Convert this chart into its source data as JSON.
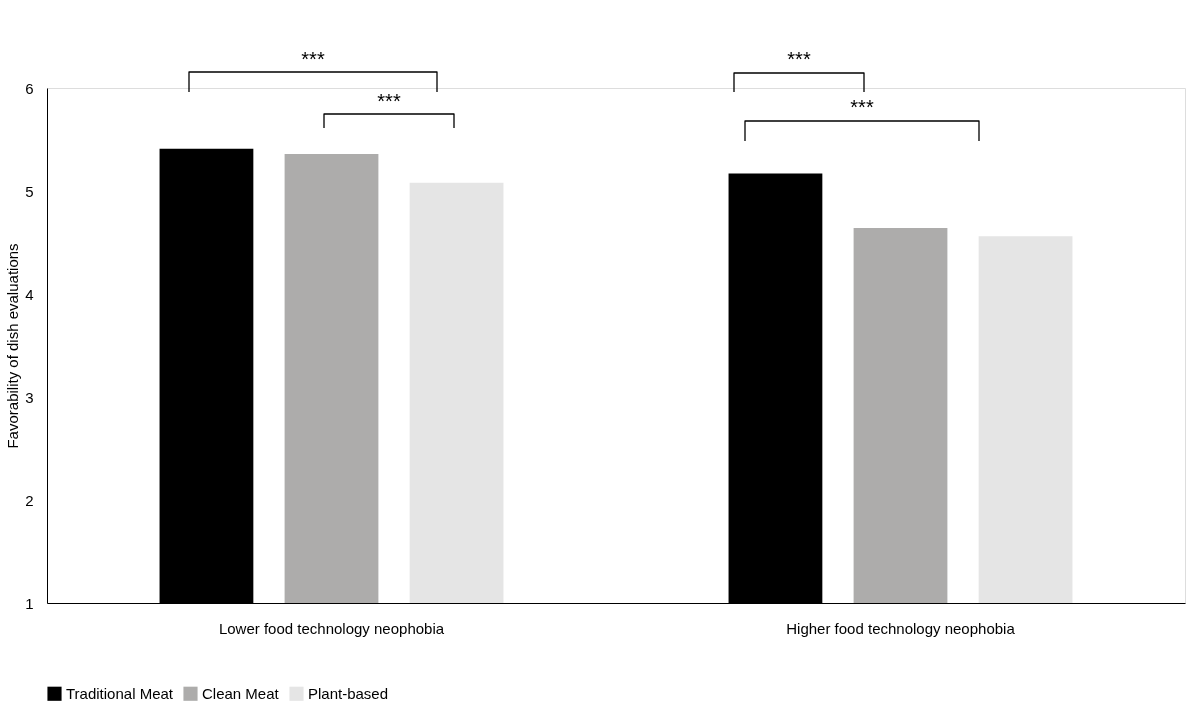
{
  "chart_data": {
    "type": "bar",
    "ylabel": "Favorability of dish evaluations",
    "categories": [
      "Lower food technology neophobia",
      "Higher food technology neophobia"
    ],
    "series": [
      {
        "name": "Traditional Meat",
        "color": "#000000",
        "values": [
          5.41,
          5.17
        ]
      },
      {
        "name": "Clean Meat",
        "color": "#adacab",
        "values": [
          5.36,
          4.64
        ]
      },
      {
        "name": "Plant-based",
        "color": "#e5e5e5",
        "values": [
          5.08,
          4.56
        ]
      }
    ],
    "ylim": [
      1,
      6
    ],
    "yticks": [
      1,
      2,
      3,
      4,
      5,
      6
    ],
    "grid": false,
    "legend": "bottom",
    "annotations": [
      "***",
      "***",
      "***",
      "***"
    ]
  }
}
